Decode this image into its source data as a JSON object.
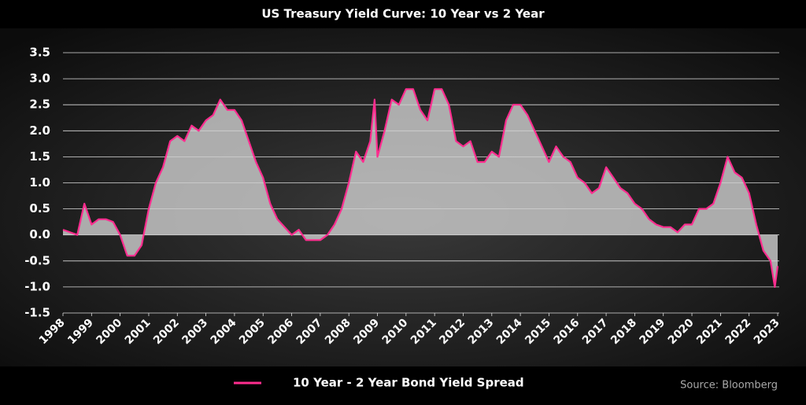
{
  "chart_data": {
    "type": "area-line",
    "title": "US Treasury Yield Curve: 10 Year vs 2 Year",
    "source": "Source: Bloomberg",
    "x": [
      1998.0,
      1998.25,
      1998.5,
      1998.75,
      1999.0,
      1999.25,
      1999.5,
      1999.75,
      2000.0,
      2000.25,
      2000.5,
      2000.75,
      2001.0,
      2001.25,
      2001.5,
      2001.75,
      2002.0,
      2002.25,
      2002.5,
      2002.75,
      2003.0,
      2003.25,
      2003.5,
      2003.75,
      2004.0,
      2004.25,
      2004.5,
      2004.75,
      2005.0,
      2005.25,
      2005.5,
      2005.75,
      2006.0,
      2006.25,
      2006.5,
      2006.75,
      2007.0,
      2007.25,
      2007.5,
      2007.75,
      2008.0,
      2008.25,
      2008.5,
      2008.75,
      2008.9,
      2009.0,
      2009.25,
      2009.5,
      2009.75,
      2010.0,
      2010.25,
      2010.5,
      2010.75,
      2011.0,
      2011.25,
      2011.5,
      2011.75,
      2012.0,
      2012.25,
      2012.5,
      2012.75,
      2013.0,
      2013.25,
      2013.5,
      2013.75,
      2014.0,
      2014.25,
      2014.5,
      2014.75,
      2015.0,
      2015.25,
      2015.5,
      2015.75,
      2016.0,
      2016.25,
      2016.5,
      2016.75,
      2017.0,
      2017.25,
      2017.5,
      2017.75,
      2018.0,
      2018.25,
      2018.5,
      2018.75,
      2019.0,
      2019.25,
      2019.5,
      2019.75,
      2020.0,
      2020.25,
      2020.5,
      2020.75,
      2021.0,
      2021.25,
      2021.5,
      2021.75,
      2022.0,
      2022.25,
      2022.5,
      2022.75,
      2022.9,
      2023.0
    ],
    "series": [
      {
        "name": "10 Year - 2 Year Bond Yield Spread",
        "color": "#ff2d8f",
        "values": [
          0.1,
          0.05,
          0.0,
          0.6,
          0.2,
          0.3,
          0.3,
          0.25,
          0.0,
          -0.4,
          -0.4,
          -0.2,
          0.5,
          1.0,
          1.3,
          1.8,
          1.9,
          1.8,
          2.1,
          2.0,
          2.2,
          2.3,
          2.6,
          2.4,
          2.4,
          2.2,
          1.8,
          1.4,
          1.1,
          0.6,
          0.3,
          0.15,
          0.0,
          0.1,
          -0.1,
          -0.1,
          -0.1,
          0.0,
          0.2,
          0.5,
          1.0,
          1.6,
          1.4,
          1.8,
          2.6,
          1.5,
          2.0,
          2.6,
          2.5,
          2.8,
          2.8,
          2.4,
          2.2,
          2.8,
          2.8,
          2.5,
          1.8,
          1.7,
          1.8,
          1.4,
          1.4,
          1.6,
          1.5,
          2.2,
          2.5,
          2.5,
          2.3,
          2.0,
          1.7,
          1.4,
          1.7,
          1.5,
          1.4,
          1.1,
          1.0,
          0.8,
          0.9,
          1.3,
          1.1,
          0.9,
          0.8,
          0.6,
          0.5,
          0.3,
          0.2,
          0.15,
          0.15,
          0.05,
          0.2,
          0.2,
          0.5,
          0.5,
          0.6,
          1.0,
          1.5,
          1.2,
          1.1,
          0.8,
          0.2,
          -0.3,
          -0.5,
          -1.0,
          -0.6
        ]
      }
    ],
    "xlim": [
      1998,
      2023
    ],
    "xticks": [
      1998,
      1999,
      2000,
      2001,
      2002,
      2003,
      2004,
      2005,
      2006,
      2007,
      2008,
      2009,
      2010,
      2011,
      2012,
      2013,
      2014,
      2015,
      2016,
      2017,
      2018,
      2019,
      2020,
      2021,
      2022,
      2023
    ],
    "ylim": [
      -1.5,
      3.5
    ],
    "yticks": [
      -1.5,
      {
        "value": -1,
        "label": "-1.0"
      },
      -0.5,
      {
        "value": 0,
        "label": "0.0"
      },
      0.5,
      {
        "value": 1,
        "label": "1.0"
      },
      1.5,
      {
        "value": 2,
        "label": "2.0"
      },
      2.5,
      {
        "value": 3,
        "label": "3.0"
      },
      3.5
    ],
    "area_color": "#d0d0d0",
    "grid": true
  }
}
